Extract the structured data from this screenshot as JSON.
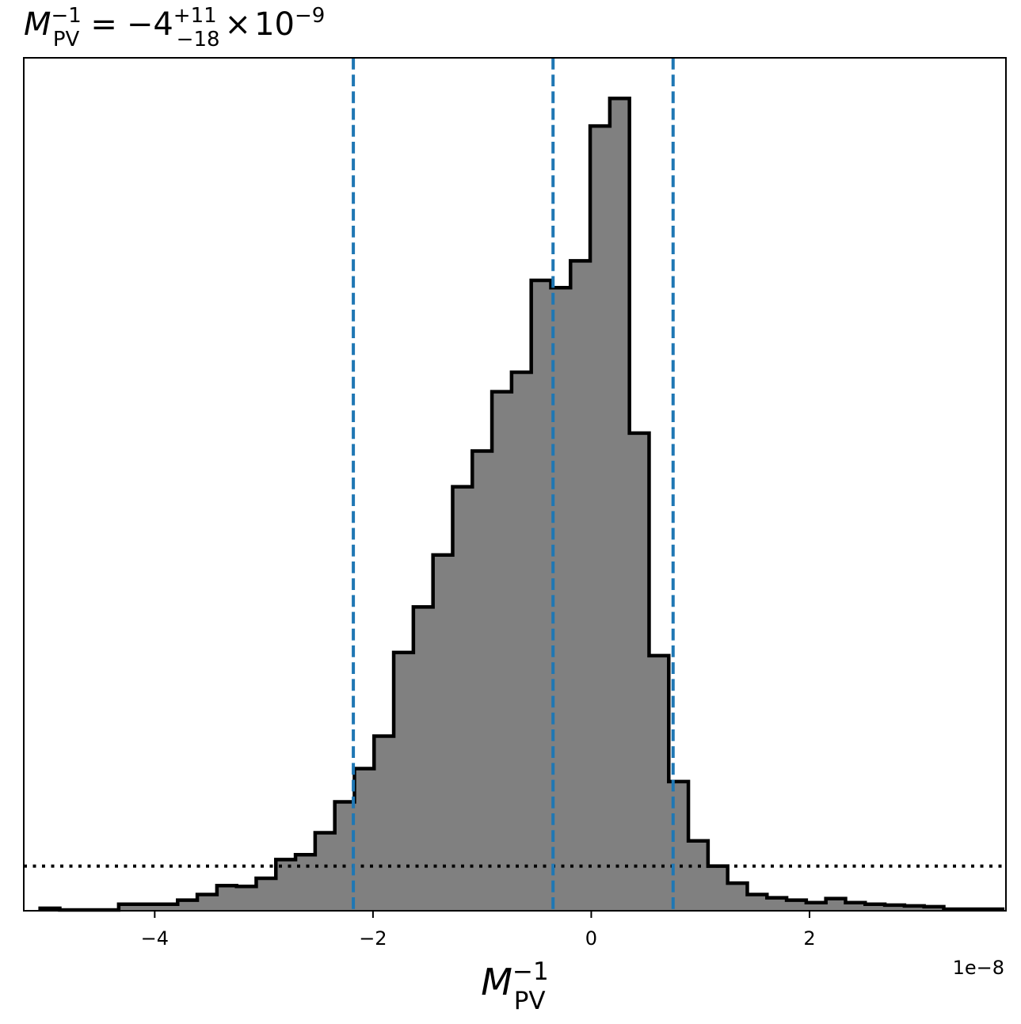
{
  "chart_data": {
    "type": "bar",
    "title": {
      "var": "M",
      "var_sub": "PV",
      "var_sup": "−1",
      "equals": "=",
      "median": "−4",
      "err_plus": "+11",
      "err_minus": "−18",
      "times": "×",
      "base": "10",
      "exp": "−9"
    },
    "xlabel": {
      "var": "M",
      "sub": "PV",
      "sup": "−1"
    },
    "ylabel": "",
    "x_offset_label": "1e−8",
    "x_scale": 1e-08,
    "xlim": [
      -5.2,
      3.8
    ],
    "ylim": [
      0,
      1.05
    ],
    "x_ticks": [
      -4,
      -2,
      0,
      2
    ],
    "x_tick_labels": [
      "−4",
      "−2",
      "0",
      "2"
    ],
    "y_ticks_shown": false,
    "grid": false,
    "bins": {
      "edges": [
        -5.05,
        -4.87,
        -4.69,
        -4.51,
        -4.33,
        -4.15,
        -3.97,
        -3.79,
        -3.61,
        -3.43,
        -3.25,
        -3.07,
        -2.89,
        -2.71,
        -2.53,
        -2.35,
        -2.17,
        -1.99,
        -1.81,
        -1.63,
        -1.45,
        -1.27,
        -1.09,
        -0.91,
        -0.73,
        -0.55,
        -0.37,
        -0.19,
        -0.01,
        0.17,
        0.35,
        0.53,
        0.71,
        0.89,
        1.07,
        1.25,
        1.43,
        1.61,
        1.79,
        1.97,
        2.15,
        2.33,
        2.51,
        2.69,
        2.87,
        3.05,
        3.23,
        3.41,
        3.59,
        3.77
      ],
      "heights": [
        0.003,
        0.001,
        0.001,
        0.001,
        0.008,
        0.008,
        0.008,
        0.013,
        0.02,
        0.031,
        0.03,
        0.04,
        0.063,
        0.069,
        0.096,
        0.134,
        0.175,
        0.215,
        0.318,
        0.374,
        0.438,
        0.522,
        0.566,
        0.639,
        0.663,
        0.776,
        0.767,
        0.8,
        0.966,
        1.0,
        0.588,
        0.314,
        0.159,
        0.086,
        0.055,
        0.034,
        0.02,
        0.016,
        0.013,
        0.01,
        0.015,
        0.01,
        0.008,
        0.007,
        0.006,
        0.005,
        0.002,
        0.002,
        0.002
      ]
    },
    "vlines": {
      "values": [
        -2.18,
        -0.35,
        0.75
      ],
      "style": "dashed",
      "color": "#1f77b4"
    },
    "hline": {
      "value": 0.055,
      "style": "dotted",
      "color": "#000000"
    },
    "colors": {
      "fill": "#808080",
      "edge": "#000000"
    }
  }
}
